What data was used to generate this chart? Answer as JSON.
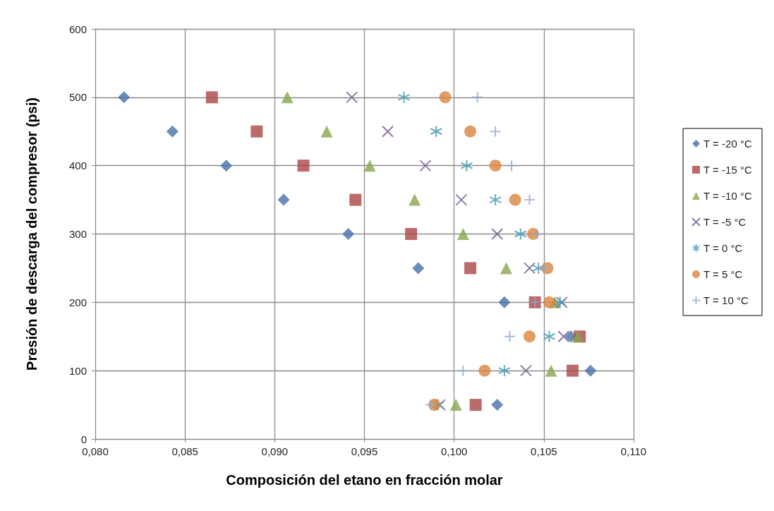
{
  "chart_data": {
    "type": "scatter",
    "xlabel": "Composición del etano en fracción molar",
    "ylabel": "Presión de descarga del compresor (psi)",
    "xlim": [
      0.08,
      0.11
    ],
    "xticks": [
      {
        "value": 0.08,
        "label": "0,080"
      },
      {
        "value": 0.085,
        "label": "0,085"
      },
      {
        "value": 0.09,
        "label": "0,090"
      },
      {
        "value": 0.095,
        "label": "0,095"
      },
      {
        "value": 0.1,
        "label": "0,100"
      },
      {
        "value": 0.105,
        "label": "0,105"
      },
      {
        "value": 0.11,
        "label": "0,110"
      }
    ],
    "ylim": [
      0,
      600
    ],
    "yticks": [
      0,
      100,
      200,
      300,
      400,
      500,
      600
    ],
    "grid": true,
    "legend": "right",
    "series": [
      {
        "name": "T = -20 °C",
        "color": "#4572a7",
        "marker": "diamond",
        "x": [
          0.0816,
          0.0843,
          0.0873,
          0.0905,
          0.0941,
          0.098,
          0.1028,
          0.1065,
          0.1076,
          0.1024
        ],
        "values": [
          500,
          450,
          400,
          350,
          300,
          250,
          200,
          150,
          100,
          50
        ]
      },
      {
        "name": "T = -15 °C",
        "color": "#aa4643",
        "marker": "square",
        "x": [
          0.0865,
          0.089,
          0.0916,
          0.0945,
          0.0976,
          0.1009,
          0.1045,
          0.107,
          0.1066,
          0.1012
        ],
        "values": [
          500,
          450,
          400,
          350,
          300,
          250,
          200,
          150,
          100,
          50
        ]
      },
      {
        "name": "T = -10 °C",
        "color": "#89a54e",
        "marker": "triangle",
        "x": [
          0.0907,
          0.0929,
          0.0953,
          0.0978,
          0.1005,
          0.1029,
          0.1056,
          0.1069,
          0.1054,
          0.1001
        ],
        "values": [
          500,
          450,
          400,
          350,
          300,
          250,
          200,
          150,
          100,
          50
        ]
      },
      {
        "name": "T = -5 °C",
        "color": "#71588f",
        "marker": "x",
        "x": [
          0.0943,
          0.0963,
          0.0984,
          0.1004,
          0.1024,
          0.1042,
          0.106,
          0.1061,
          0.104,
          0.0992
        ],
        "values": [
          500,
          450,
          400,
          350,
          300,
          250,
          200,
          150,
          100,
          50
        ]
      },
      {
        "name": "T = 0 °C",
        "color": "#4198af",
        "marker": "cross",
        "x": [
          0.0972,
          0.099,
          0.1007,
          0.1023,
          0.1037,
          0.1047,
          0.1059,
          0.1053,
          0.1028,
          0.0991
        ],
        "values": [
          500,
          450,
          400,
          350,
          300,
          250,
          200,
          150,
          100,
          50
        ]
      },
      {
        "name": "T = 5 °C",
        "color": "#db843d",
        "marker": "circle",
        "x": [
          0.0995,
          0.1009,
          0.1023,
          0.1034,
          0.1044,
          0.1052,
          0.1053,
          0.1042,
          0.1017,
          0.0989
        ],
        "values": [
          500,
          450,
          400,
          350,
          300,
          250,
          200,
          150,
          100,
          50
        ]
      },
      {
        "name": "T = 10 °C",
        "color": "#93a9cf",
        "marker": "plus",
        "x": [
          0.1013,
          0.1023,
          0.1032,
          0.1042,
          0.1046,
          0.105,
          0.1045,
          0.1031,
          0.1005,
          0.0987
        ],
        "values": [
          500,
          450,
          400,
          350,
          300,
          250,
          200,
          150,
          100,
          50
        ]
      }
    ]
  }
}
